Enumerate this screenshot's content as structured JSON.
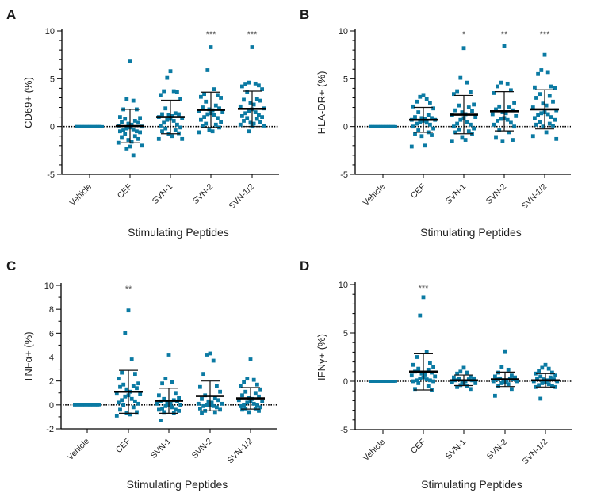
{
  "chart_data": [
    {
      "panel": "A",
      "type": "scatter",
      "title": "",
      "xlabel": "Stimulating Peptides",
      "ylabel": "CD69+ (%)",
      "categories": [
        "Vehicle",
        "CEF",
        "SVN-1",
        "SVN-2",
        "SVN-1/2"
      ],
      "ylim": [
        -5,
        10
      ],
      "yticks": [
        10,
        5,
        0,
        -5
      ],
      "reference_line": 0,
      "marker_color": "#0b7aa3",
      "significance": [
        "",
        "",
        "",
        "***",
        "***"
      ],
      "series": [
        {
          "name": "Vehicle",
          "mean": 0,
          "sd": 0,
          "values": [
            0,
            0,
            0,
            0,
            0,
            0,
            0,
            0,
            0,
            0,
            0,
            0,
            0,
            0,
            0,
            0,
            0,
            0,
            0,
            0,
            0,
            0,
            0,
            0,
            0,
            0,
            0,
            0,
            0,
            0
          ]
        },
        {
          "name": "CEF",
          "mean": 0.05,
          "sd": 1.75,
          "values": [
            6.8,
            2.9,
            2.7,
            1.8,
            1.8,
            1.0,
            0.9,
            0.8,
            0.6,
            0.5,
            0.4,
            0.3,
            0.2,
            0.1,
            0.0,
            -0.1,
            -0.2,
            -0.3,
            -0.4,
            -0.5,
            -0.5,
            -0.6,
            -0.8,
            -1.0,
            -1.1,
            -1.3,
            -1.4,
            -1.6,
            -1.7,
            -2.0,
            -2.1,
            -2.3,
            -3.0
          ]
        },
        {
          "name": "SVN-1",
          "mean": 1.0,
          "sd": 1.75,
          "values": [
            5.8,
            5.1,
            3.7,
            3.7,
            3.6,
            3.3,
            2.9,
            1.9,
            1.4,
            1.3,
            1.3,
            1.2,
            1.1,
            1.0,
            0.9,
            0.8,
            0.7,
            0.6,
            0.4,
            0.2,
            0.1,
            -0.1,
            -0.2,
            -0.4,
            -0.5,
            -0.7,
            -0.8,
            -1.0,
            -1.3,
            -1.3
          ]
        },
        {
          "name": "SVN-2",
          "mean": 1.75,
          "sd": 1.85,
          "values": [
            8.3,
            5.9,
            3.9,
            3.4,
            3.3,
            3.1,
            3.0,
            2.6,
            2.2,
            2.0,
            1.9,
            1.8,
            1.7,
            1.6,
            1.5,
            1.4,
            1.3,
            1.2,
            1.0,
            0.9,
            0.7,
            0.5,
            0.3,
            0.2,
            0.1,
            -0.1,
            -0.4,
            -0.5,
            -0.6
          ]
        },
        {
          "name": "SVN-1/2",
          "mean": 1.85,
          "sd": 1.85,
          "values": [
            8.3,
            4.6,
            4.5,
            4.4,
            4.3,
            4.2,
            3.9,
            3.6,
            2.9,
            2.8,
            2.7,
            2.5,
            2.3,
            2.1,
            1.9,
            1.8,
            1.6,
            1.5,
            1.4,
            1.2,
            1.1,
            1.0,
            0.9,
            0.8,
            0.6,
            0.5,
            0.4,
            0.3,
            0.2,
            0.1,
            0.0,
            -0.5
          ]
        }
      ]
    },
    {
      "panel": "B",
      "type": "scatter",
      "title": "",
      "xlabel": "Stimulating Peptides",
      "ylabel": "HLA-DR+ (%)",
      "categories": [
        "Vehicle",
        "CEF",
        "SVN-1",
        "SVN-2",
        "SVN-1/2"
      ],
      "ylim": [
        -5,
        10
      ],
      "yticks": [
        10,
        5,
        0,
        -5
      ],
      "reference_line": 0,
      "marker_color": "#0b7aa3",
      "significance": [
        "",
        "",
        "*",
        "**",
        "***"
      ],
      "series": [
        {
          "name": "Vehicle",
          "mean": 0,
          "sd": 0,
          "values": [
            0,
            0,
            0,
            0,
            0,
            0,
            0,
            0,
            0,
            0,
            0,
            0,
            0,
            0,
            0,
            0,
            0,
            0,
            0,
            0,
            0,
            0,
            0,
            0,
            0,
            0,
            0,
            0,
            0,
            0
          ]
        },
        {
          "name": "CEF",
          "mean": 0.7,
          "sd": 1.3,
          "values": [
            3.3,
            3.1,
            2.9,
            2.6,
            2.5,
            2.1,
            1.9,
            1.5,
            1.2,
            1.0,
            0.9,
            0.9,
            0.8,
            0.7,
            0.7,
            0.6,
            0.5,
            0.4,
            0.3,
            0.2,
            0.0,
            -0.2,
            -0.4,
            -0.6,
            -0.8,
            -0.9,
            -1.0,
            -2.0,
            -2.1
          ]
        },
        {
          "name": "SVN-1",
          "mean": 1.25,
          "sd": 2.0,
          "values": [
            8.2,
            5.1,
            4.6,
            3.7,
            3.6,
            3.4,
            2.3,
            2.2,
            2.0,
            1.7,
            1.6,
            1.5,
            1.3,
            1.2,
            1.0,
            0.9,
            0.7,
            0.5,
            0.3,
            0.2,
            0.0,
            -0.2,
            -0.3,
            -0.5,
            -0.6,
            -0.8,
            -1.1,
            -1.4,
            -1.5
          ]
        },
        {
          "name": "SVN-2",
          "mean": 1.6,
          "sd": 2.05,
          "values": [
            8.4,
            4.6,
            4.5,
            4.2,
            3.8,
            3.5,
            2.5,
            2.1,
            2.0,
            1.8,
            1.7,
            1.5,
            1.4,
            1.3,
            1.1,
            0.9,
            0.8,
            0.7,
            0.6,
            0.4,
            0.2,
            0.0,
            -0.4,
            -0.6,
            -1.1,
            -1.4,
            -1.5
          ]
        },
        {
          "name": "SVN-1/2",
          "mean": 1.8,
          "sd": 2.05,
          "values": [
            7.5,
            5.9,
            5.7,
            5.5,
            4.2,
            4.1,
            4.0,
            3.4,
            3.2,
            3.0,
            2.6,
            2.4,
            2.2,
            2.0,
            1.7,
            1.5,
            1.4,
            1.3,
            1.2,
            1.0,
            0.9,
            0.7,
            0.5,
            0.3,
            0.2,
            0.1,
            0.0,
            -0.6,
            -1.0,
            -1.3
          ]
        }
      ]
    },
    {
      "panel": "C",
      "type": "scatter",
      "title": "",
      "xlabel": "Stimulating Peptides",
      "ylabel": "TNFα+ (%)",
      "categories": [
        "Vehicle",
        "CEF",
        "SVN-1",
        "SVN-2",
        "SVN-1/2"
      ],
      "ylim": [
        -2,
        10
      ],
      "yticks": [
        10,
        8,
        6,
        4,
        2,
        0,
        -2
      ],
      "reference_line": 0,
      "marker_color": "#0b7aa3",
      "significance": [
        "",
        "**",
        "",
        "",
        ""
      ],
      "series": [
        {
          "name": "Vehicle",
          "mean": 0,
          "sd": 0,
          "values": [
            0,
            0,
            0,
            0,
            0,
            0,
            0,
            0,
            0,
            0,
            0,
            0,
            0,
            0,
            0,
            0,
            0,
            0,
            0,
            0,
            0,
            0,
            0,
            0,
            0,
            0,
            0,
            0,
            0,
            0
          ]
        },
        {
          "name": "CEF",
          "mean": 1.1,
          "sd": 1.8,
          "values": [
            7.9,
            6.0,
            3.8,
            2.7,
            2.6,
            2.2,
            1.8,
            1.7,
            1.6,
            1.5,
            1.4,
            1.3,
            1.1,
            1.0,
            0.9,
            0.8,
            0.7,
            0.5,
            0.4,
            0.3,
            0.2,
            0.1,
            0.0,
            -0.2,
            -0.4,
            -0.6,
            -0.7,
            -0.8,
            -0.9
          ]
        },
        {
          "name": "SVN-1",
          "mean": 0.35,
          "sd": 1.05,
          "values": [
            4.2,
            2.2,
            1.9,
            1.8,
            1.0,
            0.8,
            0.6,
            0.5,
            0.4,
            0.3,
            0.3,
            0.2,
            0.1,
            0.1,
            0.0,
            0.0,
            -0.1,
            -0.2,
            -0.3,
            -0.4,
            -0.4,
            -0.5,
            -0.6,
            -0.7,
            -1.3
          ]
        },
        {
          "name": "SVN-2",
          "mean": 0.75,
          "sd": 1.25,
          "values": [
            4.3,
            4.2,
            3.7,
            2.6,
            1.6,
            1.5,
            1.1,
            0.8,
            0.6,
            0.5,
            0.4,
            0.3,
            0.2,
            0.1,
            0.1,
            0.0,
            0.0,
            -0.1,
            -0.1,
            -0.2,
            -0.3,
            -0.4,
            -0.5,
            -0.6,
            -0.7
          ]
        },
        {
          "name": "SVN-1/2",
          "mean": 0.55,
          "sd": 0.9,
          "values": [
            3.8,
            2.2,
            2.1,
            1.9,
            1.7,
            1.6,
            1.3,
            1.1,
            1.0,
            0.8,
            0.7,
            0.6,
            0.5,
            0.4,
            0.3,
            0.3,
            0.2,
            0.1,
            0.0,
            0.0,
            -0.1,
            -0.2,
            -0.3,
            -0.3,
            -0.4,
            -0.5,
            -0.6
          ]
        }
      ]
    },
    {
      "panel": "D",
      "type": "scatter",
      "title": "",
      "xlabel": "Stimulating Peptides",
      "ylabel": "IFNγ+ (%)",
      "categories": [
        "Vehicle",
        "CEF",
        "SVN-1",
        "SVN-2",
        "SVN-1/2"
      ],
      "ylim": [
        -5,
        10
      ],
      "yticks": [
        10,
        5,
        0,
        -5
      ],
      "reference_line": 0,
      "marker_color": "#0b7aa3",
      "significance": [
        "",
        "***",
        "",
        "",
        ""
      ],
      "series": [
        {
          "name": "Vehicle",
          "mean": 0,
          "sd": 0,
          "values": [
            0,
            0,
            0,
            0,
            0,
            0,
            0,
            0,
            0,
            0,
            0,
            0,
            0,
            0,
            0,
            0,
            0,
            0,
            0,
            0,
            0,
            0,
            0,
            0,
            0,
            0,
            0,
            0,
            0,
            0
          ]
        },
        {
          "name": "CEF",
          "mean": 1.0,
          "sd": 1.9,
          "values": [
            8.7,
            6.8,
            3.0,
            2.5,
            1.9,
            1.7,
            1.5,
            1.3,
            1.2,
            1.0,
            0.9,
            0.8,
            0.7,
            0.6,
            0.5,
            0.4,
            0.3,
            0.2,
            0.1,
            0.1,
            0.0,
            0.0,
            -0.2,
            -0.5,
            -0.8,
            -0.9
          ]
        },
        {
          "name": "SVN-1",
          "mean": 0.1,
          "sd": 0.55,
          "values": [
            1.4,
            1.0,
            0.9,
            0.8,
            0.5,
            0.4,
            0.3,
            0.3,
            0.2,
            0.1,
            0.1,
            0.0,
            0.0,
            -0.1,
            -0.2,
            -0.3,
            -0.4,
            -0.5,
            -0.6,
            -0.8
          ]
        },
        {
          "name": "SVN-2",
          "mean": 0.2,
          "sd": 0.75,
          "values": [
            3.1,
            1.5,
            1.2,
            0.9,
            0.6,
            0.5,
            0.4,
            0.3,
            0.3,
            0.2,
            0.2,
            0.1,
            0.1,
            0.0,
            0.0,
            -0.1,
            -0.2,
            -0.3,
            -0.5,
            -0.8,
            -1.5
          ]
        },
        {
          "name": "SVN-1/2",
          "mean": 0.1,
          "sd": 0.7,
          "values": [
            1.7,
            1.4,
            1.3,
            1.1,
            0.9,
            0.8,
            0.6,
            0.5,
            0.4,
            0.3,
            0.2,
            0.2,
            0.1,
            0.0,
            0.0,
            -0.1,
            -0.2,
            -0.3,
            -0.4,
            -0.5,
            -0.6,
            -0.6,
            -1.8
          ]
        }
      ]
    }
  ]
}
